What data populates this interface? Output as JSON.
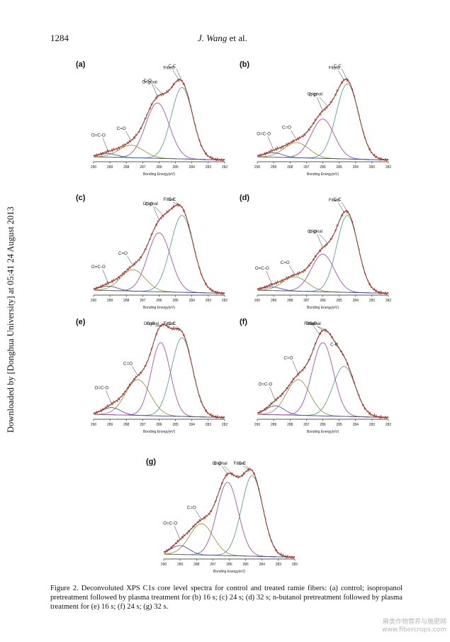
{
  "header": {
    "page_number": "1284",
    "author": "J. Wang",
    "author_suffix": " et al."
  },
  "sidebar_text": "Downloaded by [Donghua University] at 05:41 24 August 2013",
  "caption": "Figure 2.   Deconvoluted XPS C1s core level spectra for control and treated ramie fibers: (a) control; isopropanol pretreatment followed by plasma treatment for (b) 16 s; (c) 24 s; (d) 32 s; n-butanol pretreatment followed by plasma treatment for (e) 16 s; (f) 24 s; (g) 32 s.",
  "watermark": [
    "麻类作物营养与施肥网",
    "www.fibercrops.com"
  ],
  "colors": {
    "original": "#c0392b",
    "fitted": "#333333",
    "cc": "#4a9a7a",
    "co": "#9b3f9f",
    "c_eq_o": "#8a8a3a",
    "o_c_o": "#3f3fa5",
    "baseline": "#555555"
  },
  "chart_data": [
    {
      "panel": "(a)",
      "type": "line",
      "xlabel": "Bonding Energy(eV)",
      "xlim": [
        290,
        282
      ],
      "x_ticks": [
        290,
        289,
        288,
        287,
        286,
        285,
        284,
        283,
        282
      ],
      "components": [
        {
          "name": "C-C",
          "center": 284.6,
          "height": 0.8,
          "width": 0.65
        },
        {
          "name": "C-O",
          "center": 286.1,
          "height": 0.62,
          "width": 0.72
        },
        {
          "name": "C=O",
          "center": 287.7,
          "height": 0.14,
          "width": 0.75
        },
        {
          "name": "O=C-O",
          "center": 289.1,
          "height": 0.04,
          "width": 0.55
        }
      ],
      "labels": [
        "Fitted",
        "C-C",
        "Original",
        "C-O",
        "C=O",
        "O=C-O"
      ]
    },
    {
      "panel": "(b)",
      "type": "line",
      "xlabel": "Bonding Energy(eV)",
      "xlim": [
        290,
        282
      ],
      "x_ticks": [
        290,
        289,
        288,
        287,
        286,
        285,
        284,
        283,
        282
      ],
      "components": [
        {
          "name": "C-C",
          "center": 284.5,
          "height": 0.84,
          "width": 0.68
        },
        {
          "name": "C-O",
          "center": 286.0,
          "height": 0.44,
          "width": 0.7
        },
        {
          "name": "C=O",
          "center": 287.6,
          "height": 0.17,
          "width": 0.75
        },
        {
          "name": "O=C-O",
          "center": 289.0,
          "height": 0.05,
          "width": 0.55
        }
      ],
      "labels": [
        "Fitted",
        "C-C",
        "Original",
        "C-O",
        "C=O",
        "O=C-O"
      ]
    },
    {
      "panel": "(c)",
      "type": "line",
      "xlabel": "Bonding Energy(eV)",
      "xlim": [
        290,
        282
      ],
      "x_ticks": [
        290,
        289,
        288,
        287,
        286,
        285,
        284,
        283,
        282
      ],
      "components": [
        {
          "name": "C-C",
          "center": 284.6,
          "height": 0.86,
          "width": 0.7
        },
        {
          "name": "C-O",
          "center": 286.0,
          "height": 0.66,
          "width": 0.7
        },
        {
          "name": "C=O",
          "center": 287.6,
          "height": 0.24,
          "width": 0.75
        },
        {
          "name": "O=C-O",
          "center": 289.1,
          "height": 0.05,
          "width": 0.55
        }
      ],
      "labels": [
        "C-C",
        "Fitted",
        "Original",
        "C-O",
        "C=O",
        "O=C-O"
      ]
    },
    {
      "panel": "(d)",
      "type": "line",
      "xlabel": "Bonding Energy(eV)",
      "xlim": [
        290,
        282
      ],
      "x_ticks": [
        290,
        289,
        288,
        287,
        286,
        285,
        284,
        283,
        282
      ],
      "components": [
        {
          "name": "C-C",
          "center": 284.5,
          "height": 0.86,
          "width": 0.65
        },
        {
          "name": "C-O",
          "center": 286.0,
          "height": 0.42,
          "width": 0.7
        },
        {
          "name": "C=O",
          "center": 287.7,
          "height": 0.16,
          "width": 0.75
        },
        {
          "name": "O=C-O",
          "center": 289.1,
          "height": 0.04,
          "width": 0.55
        }
      ],
      "labels": [
        "Fitted",
        "C-C",
        "Original",
        "C-O",
        "C=O",
        "O=C-O"
      ]
    },
    {
      "panel": "(e)",
      "type": "line",
      "xlabel": "Bonding Energy(eV)",
      "xlim": [
        290,
        282
      ],
      "x_ticks": [
        290,
        289,
        288,
        287,
        286,
        285,
        284,
        283,
        282
      ],
      "components": [
        {
          "name": "C-C",
          "center": 284.6,
          "height": 0.88,
          "width": 0.65
        },
        {
          "name": "C-O",
          "center": 285.9,
          "height": 0.82,
          "width": 0.58
        },
        {
          "name": "C=O",
          "center": 287.3,
          "height": 0.4,
          "width": 0.75
        },
        {
          "name": "O=C-O",
          "center": 288.9,
          "height": 0.08,
          "width": 0.55
        }
      ],
      "labels": [
        "C-C",
        "Original",
        "C-O",
        "Fitted",
        "C=O",
        "O=C-O"
      ]
    },
    {
      "panel": "(f)",
      "type": "line",
      "xlabel": "Bonding Energy(eV)",
      "xlim": [
        290,
        282
      ],
      "x_ticks": [
        290,
        289,
        288,
        287,
        286,
        285,
        284,
        283,
        282
      ],
      "components": [
        {
          "name": "C-C",
          "center": 284.7,
          "height": 0.56,
          "width": 0.68
        },
        {
          "name": "C-O",
          "center": 286.0,
          "height": 0.82,
          "width": 0.65
        },
        {
          "name": "C=O",
          "center": 287.5,
          "height": 0.4,
          "width": 0.72
        },
        {
          "name": "O=C-O",
          "center": 288.9,
          "height": 0.1,
          "width": 0.55
        }
      ],
      "labels": [
        "Fitted",
        "C-O",
        "Original",
        "C=O",
        "C-C",
        "O=C-O"
      ]
    },
    {
      "panel": "(g)",
      "type": "line",
      "xlabel": "Bonding Energy(eV)",
      "xlim": [
        290,
        282
      ],
      "x_ticks": [
        290,
        289,
        288,
        287,
        286,
        285,
        284,
        283,
        282
      ],
      "components": [
        {
          "name": "C-C",
          "center": 284.6,
          "height": 0.9,
          "width": 0.65
        },
        {
          "name": "C-O",
          "center": 286.1,
          "height": 0.82,
          "width": 0.65
        },
        {
          "name": "C=O",
          "center": 287.7,
          "height": 0.35,
          "width": 0.72
        },
        {
          "name": "O=C-O",
          "center": 289.0,
          "height": 0.1,
          "width": 0.55
        }
      ],
      "labels": [
        "C-O",
        "C-C",
        "Fitted",
        "Original",
        "C=O",
        "O=C-O"
      ]
    }
  ]
}
